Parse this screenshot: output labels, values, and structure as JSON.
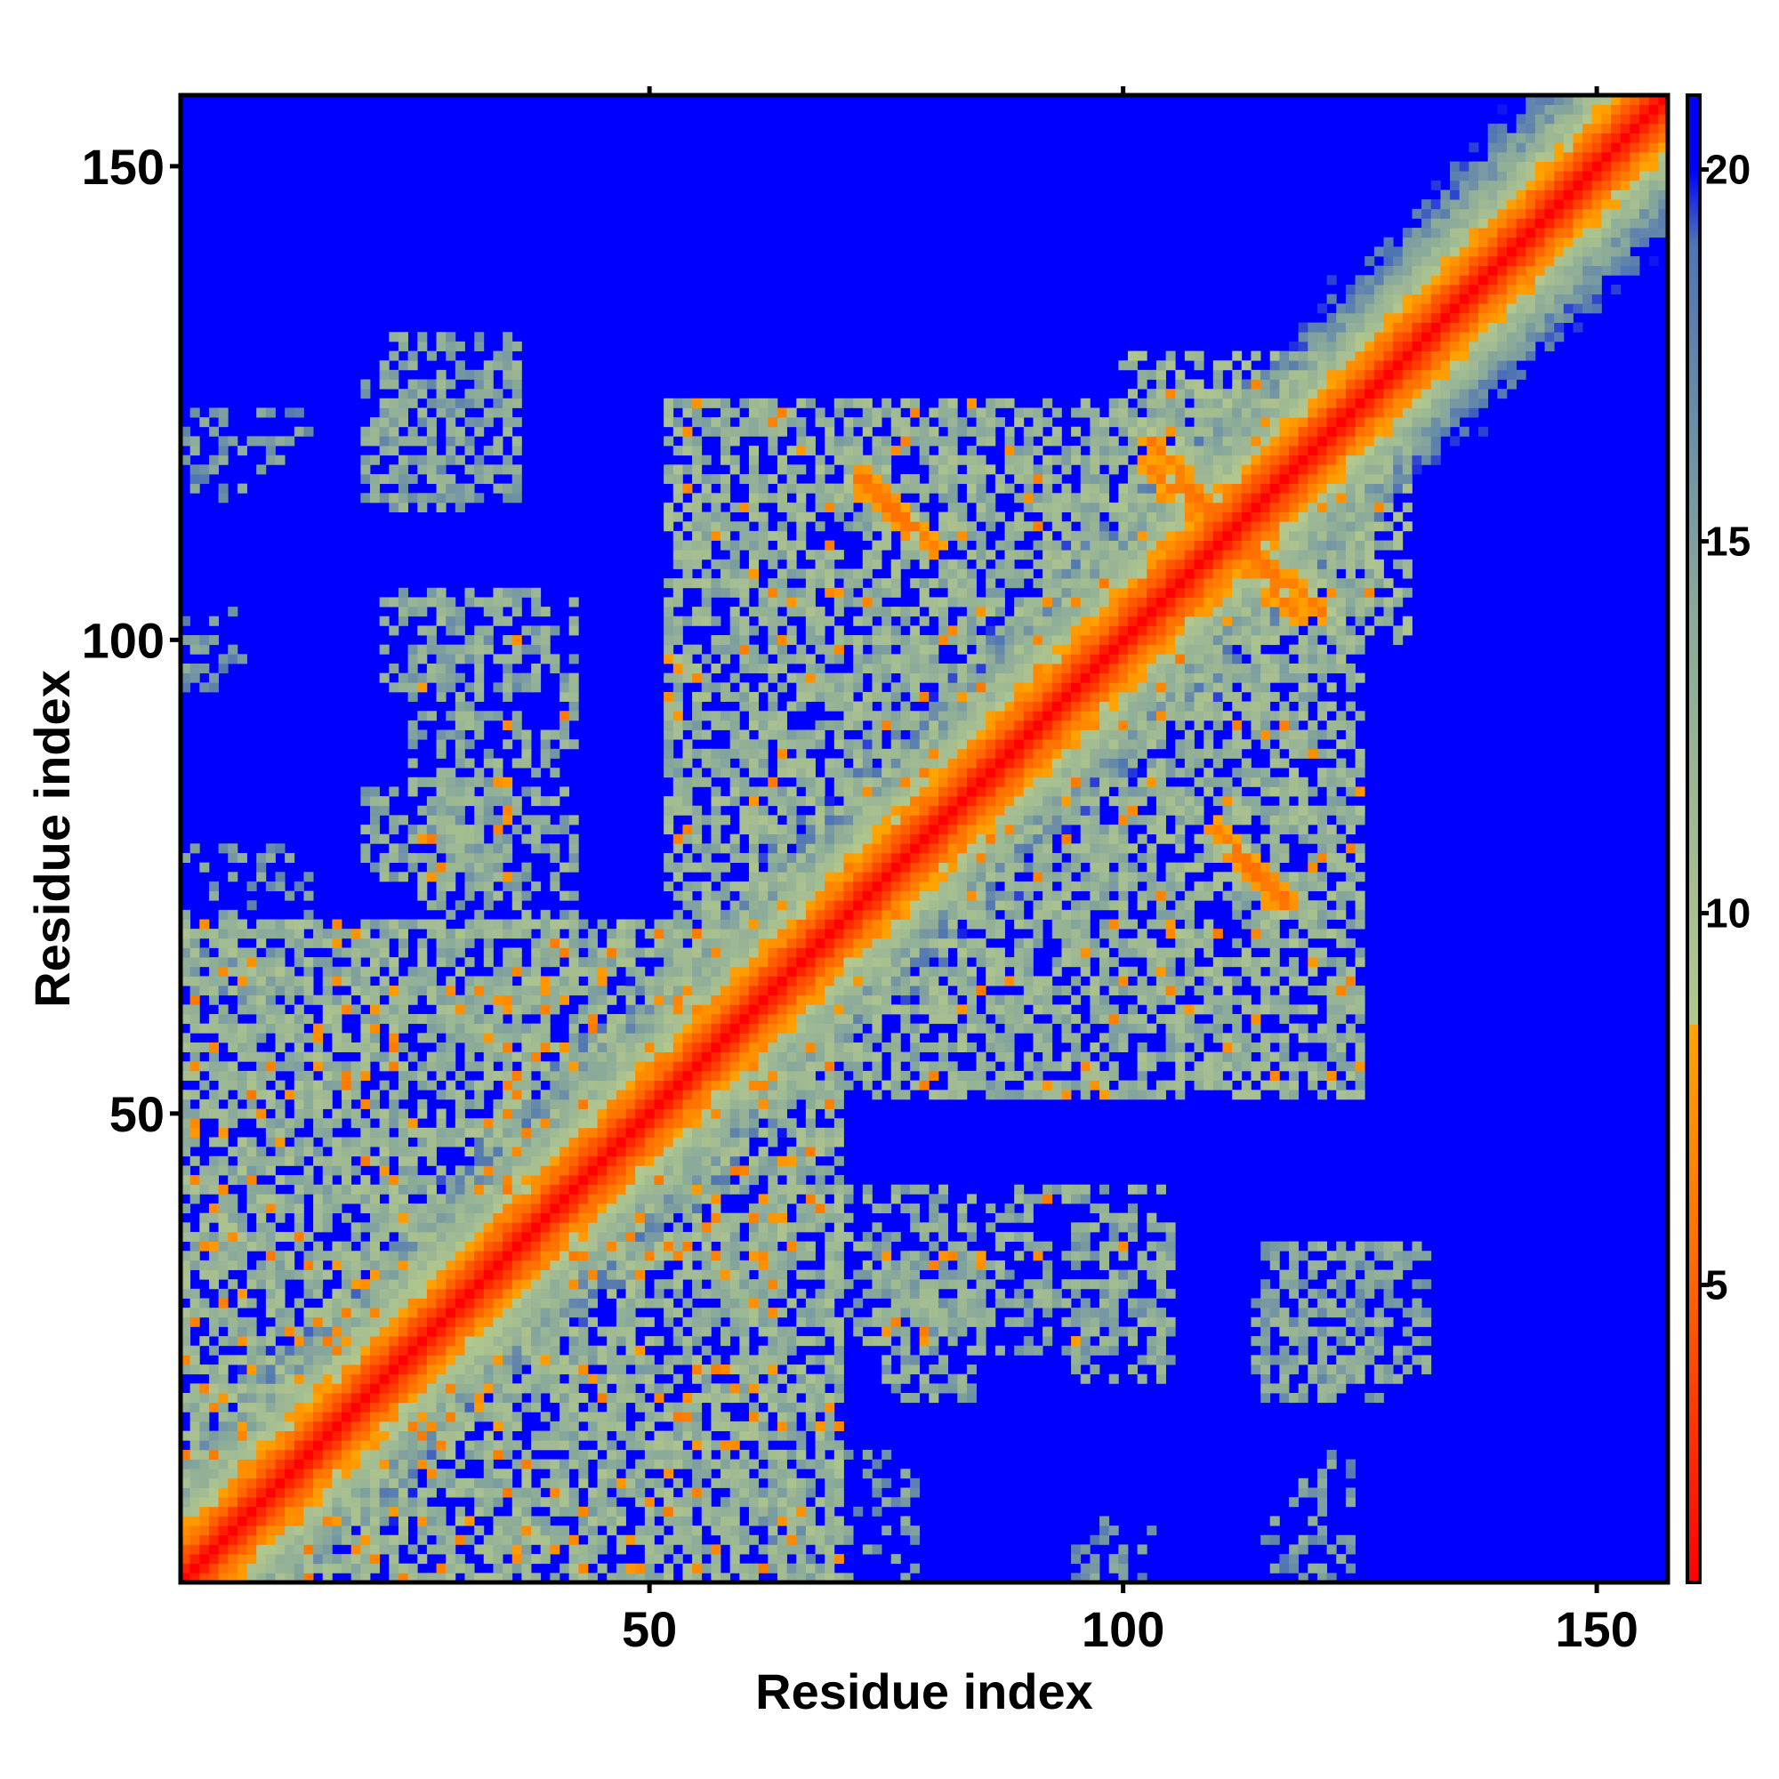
{
  "chart_data": {
    "type": "heatmap",
    "title": "",
    "xlabel": "Residue index",
    "ylabel": "Residue index",
    "n_residues": 157,
    "xlim": [
      1,
      157
    ],
    "ylim": [
      1,
      157
    ],
    "x_ticks": [
      50,
      100,
      150
    ],
    "y_ticks": [
      50,
      100,
      150
    ],
    "colorbar": {
      "range": [
        1,
        21
      ],
      "ticks": [
        5,
        10,
        15,
        20
      ],
      "stops": [
        {
          "value": 1,
          "color": "#ff0000"
        },
        {
          "value": 5.5,
          "color": "#ff7000"
        },
        {
          "value": 8.5,
          "color": "#ffa500"
        },
        {
          "value": 8.5,
          "color": "#b4c88c"
        },
        {
          "value": 14,
          "color": "#8aaa9a"
        },
        {
          "value": 19,
          "color": "#4f74b4"
        },
        {
          "value": 20,
          "color": "#0000ff"
        },
        {
          "value": 21,
          "color": "#0000ff"
        }
      ]
    },
    "background_value": 21,
    "diagonal_band": {
      "center_value": 1,
      "falloff_per_residue": 1.35
    },
    "contact_regions": [
      {
        "x": [
          1,
          70
        ],
        "y": [
          1,
          70
        ],
        "value": 12.5,
        "density": 0.72,
        "close_contacts": 0.08
      },
      {
        "x": [
          52,
          125
        ],
        "y": [
          52,
          125
        ],
        "value": 12.5,
        "density": 0.66,
        "close_contacts": 0.05
      },
      {
        "x": [
          20,
          35
        ],
        "y": [
          75,
          85
        ],
        "value": 13.5,
        "density": 0.55,
        "close_contacts": 0.04
      },
      {
        "x": [
          22,
          38
        ],
        "y": [
          95,
          105
        ],
        "value": 14.0,
        "density": 0.45,
        "close_contacts": 0.01
      },
      {
        "x": [
          20,
          36
        ],
        "y": [
          115,
          127
        ],
        "value": 14.5,
        "density": 0.5,
        "close_contacts": 0.0
      },
      {
        "x": [
          1,
          14
        ],
        "y": [
          118,
          124
        ],
        "value": 15.5,
        "density": 0.35,
        "close_contacts": 0.0
      },
      {
        "x": [
          1,
          7
        ],
        "y": [
          95,
          103
        ],
        "value": 16.0,
        "density": 0.3,
        "close_contacts": 0.0
      },
      {
        "x": [
          70,
          105
        ],
        "y": [
          25,
          42
        ],
        "value": 13.5,
        "density": 0.45,
        "close_contacts": 0.02
      },
      {
        "x": [
          114,
          132
        ],
        "y": [
          22,
          36
        ],
        "value": 14.0,
        "density": 0.45,
        "close_contacts": 0.01
      },
      {
        "x": [
          58,
          78
        ],
        "y": [
          1,
          14
        ],
        "value": 15.0,
        "density": 0.35,
        "close_contacts": 0.0
      },
      {
        "x": [
          95,
          100
        ],
        "y": [
          1,
          6
        ],
        "value": 16.0,
        "density": 0.3,
        "close_contacts": 0.0
      },
      {
        "x": [
          115,
          122
        ],
        "y": [
          1,
          8
        ],
        "value": 16.0,
        "density": 0.3,
        "close_contacts": 0.0
      },
      {
        "x": [
          100,
          130
        ],
        "y": [
          100,
          127
        ],
        "value": 12.0,
        "density": 0.55,
        "close_contacts": 0.03
      }
    ],
    "antiparallel_strands": [
      {
        "x_start": 103,
        "y_start": 121,
        "x_end": 118,
        "y_end": 103,
        "value": 5.5
      },
      {
        "x_start": 73,
        "y_start": 117,
        "x_end": 80,
        "y_end": 110,
        "value": 5.5
      },
      {
        "x_start": 112,
        "y_start": 77,
        "x_end": 117,
        "y_end": 72,
        "value": 5.5
      }
    ]
  }
}
